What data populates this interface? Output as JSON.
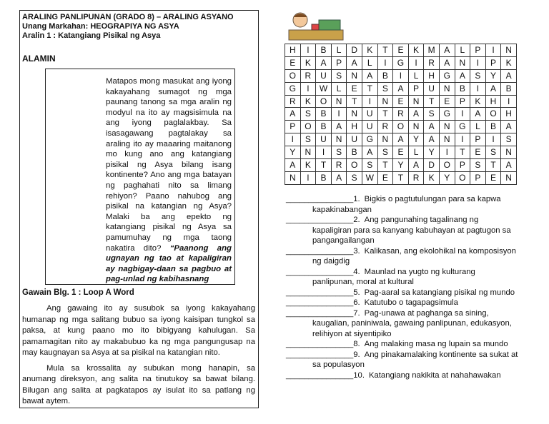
{
  "left": {
    "header": {
      "line1": "ARALING PANLIPUNAN (GRADO 8) – ARALING ASYANO",
      "line2": "Unang Markahan: HEOGRAPIYA NG ASYA",
      "line3": "Aralin 1 : Katangiang Pisikal ng Asya"
    },
    "section": "ALAMIN",
    "box": {
      "text": "Matapos mong masukat ang iyong kakayahang sumagot ng mga paunang tanong sa mga aralin ng modyul na ito ay magsisimula na ang iyong paglalakbay. Sa isasagawang pagtalakay sa araling ito ay maaaring maitanong mo kung ano ang katangiang pisikal ng Asya bilang isang kontinente? Ano ang mga batayan ng paghahati nito sa limang rehiyon? Paano nahubog ang pisikal na katangian ng Asya? Malaki ba ang epekto ng katangiang pisikal ng Asya sa pamumuhay ng mga taong nakatira dito?",
      "emphasis": "“Paanong ang ugnayan ng tao at kapaligiran ay nagbigay-daan sa pagbuo at pag-unlad ng kabihasnang"
    },
    "activity_title": "Gawain Blg. 1 : Loop A Word",
    "paragraphs": [
      "Ang gawaing ito ay susubok sa iyong kakayahang humanap ng mga salitang bubuo sa iyong kaisipan tungkol sa paksa, at kung paano mo ito bibigyang kahulugan. Sa pamamagitan nito ay makabubuo ka ng mga pangungusap na may kaugnayan sa Asya at sa pisikal na katangian nito.",
      "Mula sa krossalita ay subukan mong hanapin, sa anumang direksyon, ang salita na tinutukoy sa bawat bilang. Bilugan ang salita at pagkatapos ay isulat ito sa patlang ng bawat aytem."
    ]
  },
  "grid": {
    "rows": [
      [
        "H",
        "I",
        "B",
        "L",
        "D",
        "K",
        "T",
        "E",
        "K",
        "M",
        "A",
        "L",
        "P",
        "I",
        "N"
      ],
      [
        "E",
        "K",
        "A",
        "P",
        "A",
        "L",
        "I",
        "G",
        "I",
        "R",
        "A",
        "N",
        "I",
        "P",
        "K"
      ],
      [
        "O",
        "R",
        "U",
        "S",
        "N",
        "A",
        "B",
        "I",
        "L",
        "H",
        "G",
        "A",
        "S",
        "Y",
        "A"
      ],
      [
        "G",
        "I",
        "W",
        "L",
        "E",
        "T",
        "S",
        "A",
        "P",
        "U",
        "N",
        "B",
        "I",
        "A",
        "B"
      ],
      [
        "R",
        "K",
        "O",
        "N",
        "T",
        "I",
        "N",
        "E",
        "N",
        "T",
        "E",
        "P",
        "K",
        "H",
        "I"
      ],
      [
        "A",
        "S",
        "B",
        "I",
        "N",
        "U",
        "T",
        "R",
        "A",
        "S",
        "G",
        "I",
        "A",
        "O",
        "H"
      ],
      [
        "P",
        "O",
        "B",
        "A",
        "H",
        "U",
        "R",
        "O",
        "N",
        "A",
        "N",
        "G",
        "L",
        "B",
        "A"
      ],
      [
        "I",
        "S",
        "U",
        "N",
        "U",
        "G",
        "N",
        "A",
        "Y",
        "A",
        "N",
        "I",
        "P",
        "I",
        "S"
      ],
      [
        "Y",
        "N",
        "I",
        "S",
        "B",
        "A",
        "S",
        "E",
        "L",
        "Y",
        "I",
        "T",
        "E",
        "S",
        "N"
      ],
      [
        "A",
        "K",
        "T",
        "R",
        "O",
        "S",
        "T",
        "Y",
        "A",
        "D",
        "O",
        "P",
        "S",
        "T",
        "A"
      ],
      [
        "N",
        "I",
        "B",
        "A",
        "S",
        "W",
        "E",
        "T",
        "R",
        "K",
        "Y",
        "O",
        "P",
        "E",
        "N"
      ]
    ]
  },
  "items": [
    {
      "blank": "_______________",
      "number": "1.",
      "text": "Bigkis o pagtutulungan para sa kapwa kapakinabangan"
    },
    {
      "blank": "_______________",
      "number": "2.",
      "text": "Ang pangunahing tagalinang ng kapaligiran para sa kanyang kabuhayan at pagtugon sa pangangailangan"
    },
    {
      "blank": "_______________",
      "number": "3.",
      "text": "Kalikasan, ang ekolohikal na komposisyon ng daigdig"
    },
    {
      "blank": "_______________",
      "number": "4.",
      "text": "Maunlad na yugto ng kulturang panlipunan, moral at kultural"
    },
    {
      "blank": "_______________",
      "number": "5.",
      "text": "Pag-aaral sa katangiang pisikal ng mundo"
    },
    {
      "blank": "_______________",
      "number": "6.",
      "text": "Katutubo o tagapagsimula"
    },
    {
      "blank": "_______________",
      "number": "7.",
      "text": "Pag-unawa at paghanga sa sining, kaugalian, paniniwala, gawaing panlipunan, edukasyon, relihiyon at siyentipiko"
    },
    {
      "blank": "_______________",
      "number": "8.",
      "text": "Ang malaking masa ng lupain sa mundo"
    },
    {
      "blank": "_______________",
      "number": "9.",
      "text": "Ang pinakamalaking kontinente sa sukat at sa populasyon"
    },
    {
      "blank": "_______________",
      "number": "10.",
      "text": "Katangiang nakikita at nahahawakan"
    }
  ]
}
